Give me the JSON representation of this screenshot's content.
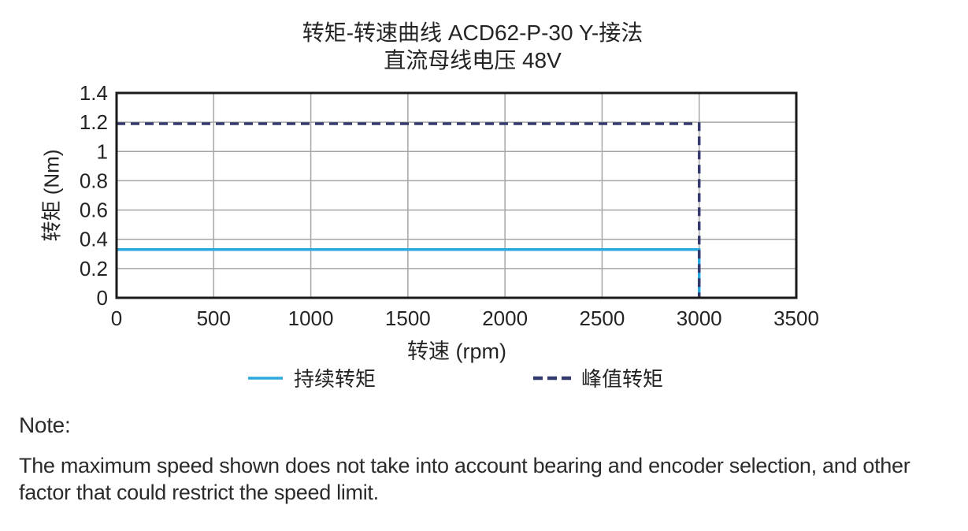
{
  "chart_data": {
    "type": "line",
    "title": "转矩-转速曲线 ACD62-P-30 Y-接法",
    "subtitle": "直流母线电压 48V",
    "xlabel": "转速 (rpm)",
    "ylabel": "转矩 (Nm)",
    "xlim": [
      0,
      3500
    ],
    "ylim": [
      0,
      1.4
    ],
    "xticks": [
      0,
      500,
      1000,
      1500,
      2000,
      2500,
      3000,
      3500
    ],
    "xtick_labels": [
      "0",
      "500",
      "1000",
      "1500",
      "2000",
      "2500",
      "3000",
      "3500"
    ],
    "yticks": [
      0,
      0.2,
      0.4,
      0.6,
      0.8,
      1,
      1.2,
      1.4
    ],
    "ytick_labels": [
      "0",
      "0.2",
      "0.4",
      "0.6",
      "0.8",
      "1",
      "1.2",
      "1.4"
    ],
    "grid": true,
    "grid_color": "#a6a6a6",
    "axis_color": "#1a1a1a",
    "legend_position": "bottom",
    "series": [
      {
        "name": "持续转矩",
        "line_style": "solid",
        "color": "#29a9df",
        "points": [
          [
            0,
            0.33
          ],
          [
            3000,
            0.33
          ],
          [
            3000,
            0
          ]
        ]
      },
      {
        "name": "峰值转矩",
        "line_style": "dashed",
        "color": "#343a6e",
        "points": [
          [
            0,
            1.19
          ],
          [
            3000,
            1.19
          ],
          [
            3000,
            0
          ]
        ]
      }
    ]
  },
  "note": {
    "heading": "Note:",
    "body": "The maximum speed shown does not take into account bearing and encoder selection, and other factor that could restrict the speed limit."
  }
}
